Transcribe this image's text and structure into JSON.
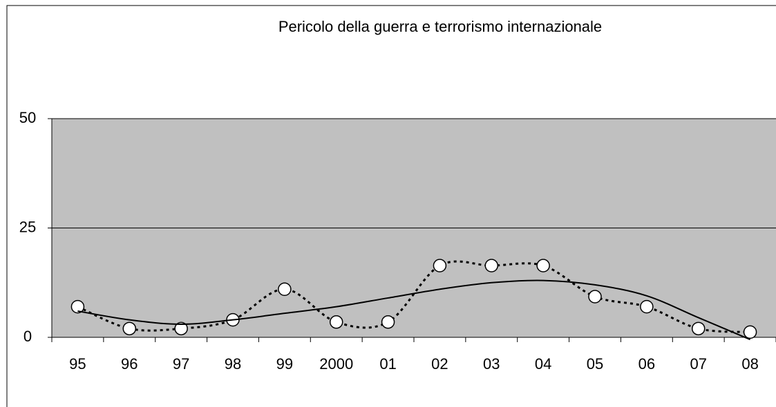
{
  "chart_data": {
    "type": "line",
    "title": "Pericolo della guerra e terrorismo internazionale",
    "categories": [
      "95",
      "96",
      "97",
      "98",
      "99",
      "2000",
      "01",
      "02",
      "03",
      "04",
      "05",
      "06",
      "07",
      "08"
    ],
    "series": [
      {
        "color": "#000000",
        "values": [
          7,
          2,
          2,
          4,
          11,
          3.5,
          3.5,
          16.4,
          16.4,
          16.4,
          9.3,
          7,
          2,
          1.2
        ]
      },
      {
        "color": "#000000",
        "values": [
          6,
          4,
          3,
          4,
          5.5,
          7,
          9,
          11,
          12.5,
          13,
          12,
          9.5,
          4.5,
          -0.5
        ]
      }
    ],
    "ylim": [
      0,
      50
    ],
    "yticks": [
      0,
      25,
      50
    ],
    "grid": true,
    "background": "#c0c0c0"
  }
}
